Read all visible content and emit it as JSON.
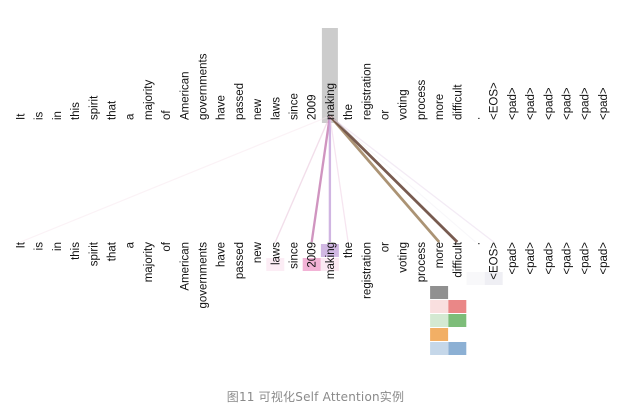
{
  "figure": {
    "tokens": [
      "It",
      "is",
      "in",
      "this",
      "spirit",
      "that",
      "a",
      "majority",
      "of",
      "American",
      "governments",
      "have",
      "passed",
      "new",
      "laws",
      "since",
      "2009",
      "making",
      "the",
      "registration",
      "or",
      "voting",
      "process",
      "more",
      "difficult",
      ".",
      "<EOS>",
      "<pad>",
      "<pad>",
      "<pad>",
      "<pad>",
      "<pad>",
      "<pad>"
    ],
    "query_index": 17,
    "query_highlight_color": "#cccccc",
    "attention": [
      {
        "index": 0,
        "color": "#f7e6ee",
        "weight": 0.25
      },
      {
        "index": 14,
        "color": "#e8c4da",
        "weight": 0.35
      },
      {
        "index": 16,
        "color": "#c77fb3",
        "weight": 0.8
      },
      {
        "index": 17,
        "color": "#c6a6dc",
        "weight": 0.8
      },
      {
        "index": 18,
        "color": "#eecde2",
        "weight": 0.3
      },
      {
        "index": 23,
        "color": "#a68d6d",
        "weight": 1.0
      },
      {
        "index": 24,
        "color": "#715247",
        "weight": 1.0
      },
      {
        "index": 25,
        "color": "#f2f0f6",
        "weight": 0.25
      },
      {
        "index": 26,
        "color": "#e8d9ec",
        "weight": 0.3
      }
    ],
    "heads": [
      {
        "color": "#c6a6dc",
        "cells": [
          [
            17,
            0.8
          ]
        ]
      },
      {
        "color": "#f0a6cf",
        "cells": [
          [
            16,
            0.85
          ],
          [
            17,
            0.25
          ],
          [
            14,
            0.2
          ]
        ]
      },
      {
        "color": "#e8e8f0",
        "cells": [
          [
            26,
            0.7
          ],
          [
            25,
            0.3
          ]
        ]
      },
      {
        "color": "#8a8a8a",
        "cells": [
          [
            23,
            0.95
          ]
        ]
      },
      {
        "color": "#e98181",
        "cells": [
          [
            23,
            0.25
          ],
          [
            24,
            0.95
          ]
        ]
      },
      {
        "color": "#6fb66a",
        "cells": [
          [
            24,
            0.9
          ],
          [
            23,
            0.3
          ]
        ]
      },
      {
        "color": "#f0a14a",
        "cells": [
          [
            23,
            0.85
          ]
        ]
      },
      {
        "color": "#7fa7cf",
        "cells": [
          [
            24,
            0.9
          ],
          [
            23,
            0.45
          ]
        ]
      }
    ]
  },
  "caption": "图11 可视化Self Attention实例"
}
